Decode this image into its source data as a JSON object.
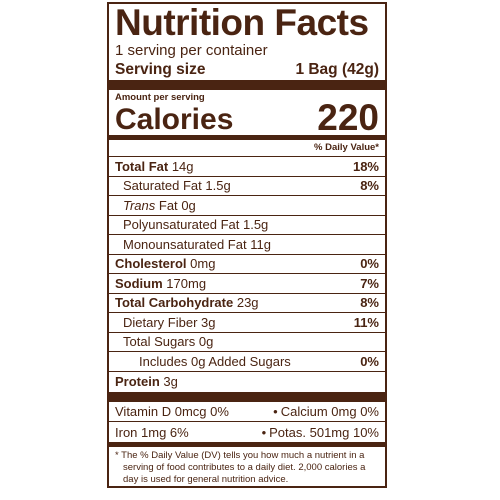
{
  "title": "Nutrition Facts",
  "servings_per_container": "1 serving per container",
  "serving_size": {
    "label": "Serving size",
    "value": "1 Bag (42g)"
  },
  "amount_per_serving": "Amount per serving",
  "calories": {
    "label": "Calories",
    "value": "220"
  },
  "daily_value_header": "% Daily Value*",
  "nutrients": [
    {
      "name": "Total Fat",
      "amount": "14g",
      "dv": "18%"
    },
    {
      "name": "Saturated Fat",
      "amount": "1.5g",
      "dv": "8%"
    },
    {
      "name": "Trans",
      "name_suffix": "Fat",
      "amount": "0g",
      "dv": ""
    },
    {
      "name": "Polyunsaturated Fat",
      "amount": "1.5g",
      "dv": ""
    },
    {
      "name": "Monounsaturated Fat",
      "amount": "11g",
      "dv": ""
    },
    {
      "name": "Cholesterol",
      "amount": "0mg",
      "dv": "0%"
    },
    {
      "name": "Sodium",
      "amount": "170mg",
      "dv": "7%"
    },
    {
      "name": "Total Carbohydrate",
      "amount": "23g",
      "dv": "8%"
    },
    {
      "name": "Dietary Fiber",
      "amount": "3g",
      "dv": "11%"
    },
    {
      "name": "Total Sugars",
      "amount": "0g",
      "dv": ""
    },
    {
      "name": "Includes 0g Added Sugars",
      "amount": "",
      "dv": "0%"
    },
    {
      "name": "Protein",
      "amount": "3g",
      "dv": ""
    }
  ],
  "vitamins": [
    {
      "left": "Vitamin D 0mcg 0%",
      "right": "Calcium 0mg 0%"
    },
    {
      "left": "Iron 1mg 6%",
      "right": "Potas. 501mg 10%"
    }
  ],
  "separator": "•",
  "footnote": "* The % Daily Value (DV) tells you how much a nutrient in a serving of food contributes to a daily diet. 2,000 calories a day is used for general nutrition advice."
}
